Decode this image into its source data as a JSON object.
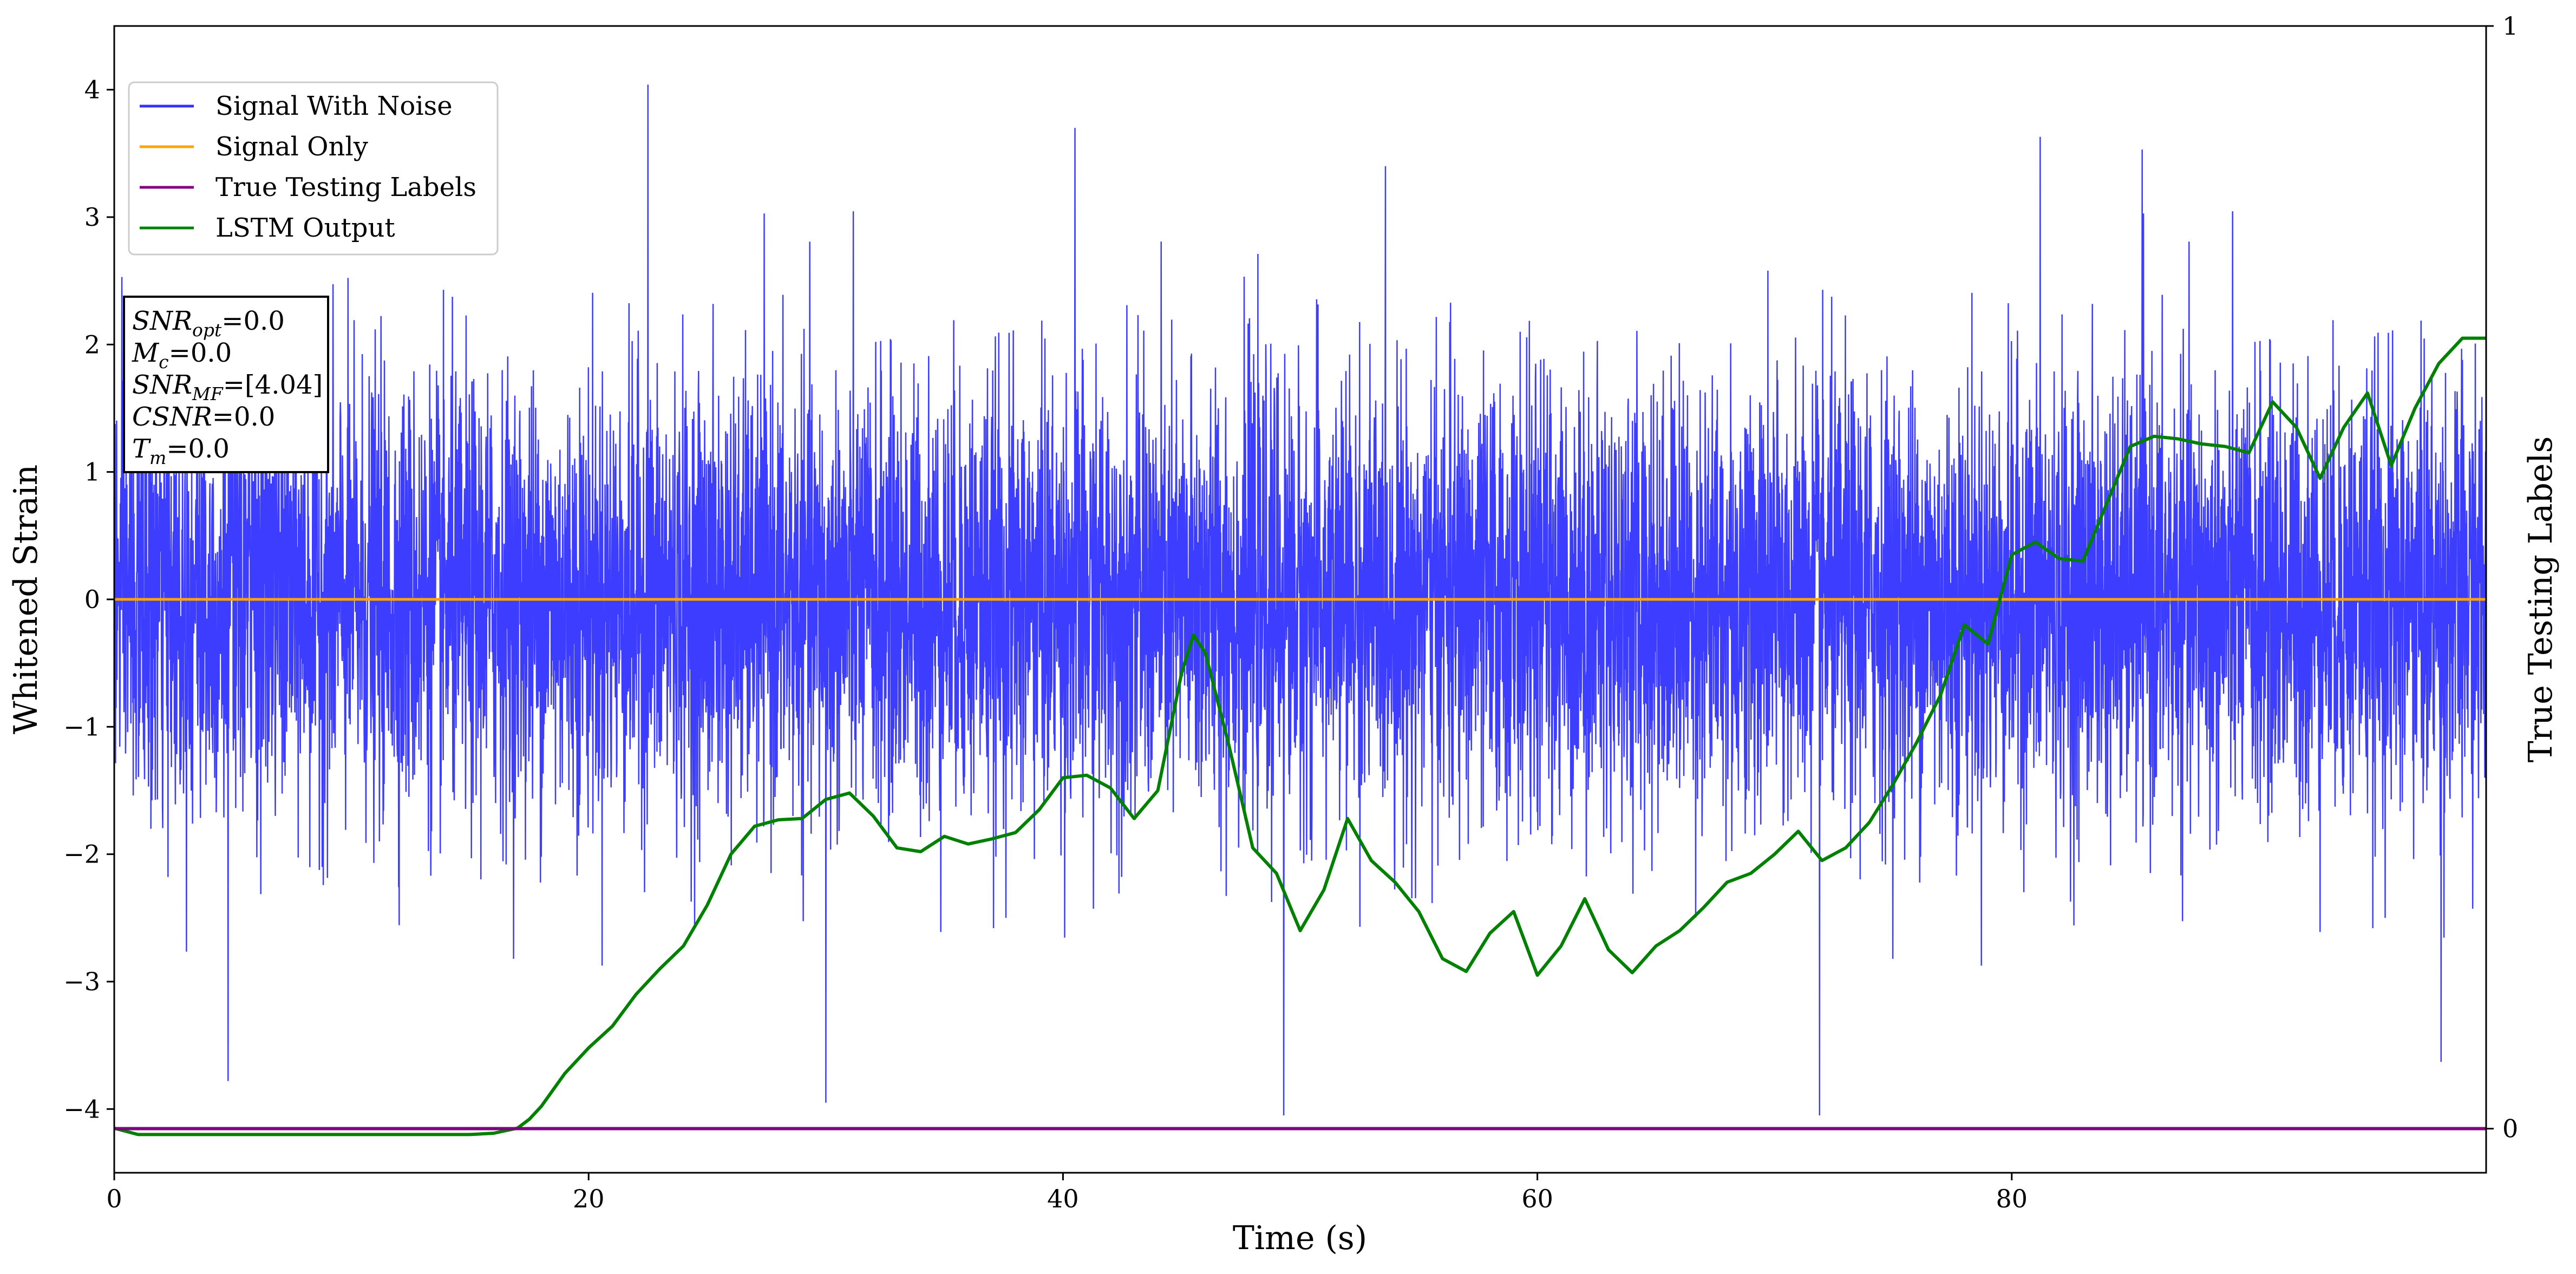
{
  "chart_data": {
    "type": "line",
    "x_label": "Time (s)",
    "y_label": "Whitened Strain",
    "y2_label": "True Testing Labels",
    "xlim": [
      0,
      100
    ],
    "ylim": [
      -4.5,
      4.5
    ],
    "y2lim": [
      -0.04,
      1.0
    ],
    "x_ticks": [
      0,
      20,
      40,
      60,
      80
    ],
    "y_ticks": [
      -4,
      -3,
      -2,
      -1,
      0,
      1,
      2,
      3,
      4
    ],
    "y2_ticks": [
      0,
      1
    ],
    "grid": false,
    "legend_position": "upper-left",
    "series": [
      {
        "name": "Signal With Noise",
        "color": "#3333ff",
        "noise_rms_approx": 0.85,
        "notable_peaks": [
          {
            "x": 22.5,
            "y": 4.04
          },
          {
            "x": 40.5,
            "y": 3.7
          },
          {
            "x": 81.2,
            "y": 3.63
          },
          {
            "x": 85.5,
            "y": 3.53
          },
          {
            "x": 49.3,
            "y": -4.05
          },
          {
            "x": 71.9,
            "y": -4.05
          },
          {
            "x": 30.0,
            "y": -3.95
          },
          {
            "x": 4.8,
            "y": -3.78
          },
          {
            "x": 98.1,
            "y": -3.63
          }
        ]
      },
      {
        "name": "Signal Only",
        "color": "#ffa500",
        "x": [
          0,
          100
        ],
        "y": [
          0,
          0
        ]
      },
      {
        "name": "True Testing Labels",
        "color": "#800080",
        "axis": "right",
        "x": [
          0,
          100
        ],
        "y": [
          0,
          0
        ]
      },
      {
        "name": "LSTM Output",
        "color": "#008000",
        "axis": "left",
        "x": [
          0,
          1,
          5,
          10,
          15,
          16,
          17,
          17.5,
          18,
          19,
          20,
          21,
          22,
          23,
          24,
          25,
          26,
          27,
          28,
          29,
          30,
          31,
          32,
          33,
          34,
          35,
          36,
          37,
          38,
          39,
          40,
          41,
          42,
          43,
          44,
          45,
          45.5,
          46,
          47,
          48,
          49,
          50,
          51,
          52,
          53,
          54,
          55,
          56,
          57,
          58,
          59,
          60,
          61,
          62,
          63,
          64,
          65,
          66,
          67,
          68,
          69,
          70,
          71,
          72,
          73,
          74,
          75,
          76,
          77,
          78,
          79,
          80,
          81,
          82,
          83,
          84,
          85,
          86,
          87,
          88,
          89,
          90,
          91,
          92,
          93,
          94,
          95,
          96,
          97,
          98,
          99,
          100
        ],
        "y": [
          -4.15,
          -4.2,
          -4.2,
          -4.2,
          -4.2,
          -4.19,
          -4.15,
          -4.08,
          -3.98,
          -3.72,
          -3.52,
          -3.35,
          -3.1,
          -2.9,
          -2.72,
          -2.4,
          -2.0,
          -1.78,
          -1.73,
          -1.72,
          -1.57,
          -1.52,
          -1.7,
          -1.95,
          -1.98,
          -1.86,
          -1.92,
          -1.88,
          -1.83,
          -1.65,
          -1.4,
          -1.38,
          -1.48,
          -1.72,
          -1.5,
          -0.58,
          -0.28,
          -0.42,
          -1.15,
          -1.95,
          -2.15,
          -2.6,
          -2.28,
          -1.72,
          -2.05,
          -2.22,
          -2.45,
          -2.82,
          -2.92,
          -2.62,
          -2.45,
          -2.95,
          -2.72,
          -2.35,
          -2.75,
          -2.93,
          -2.72,
          -2.6,
          -2.42,
          -2.22,
          -2.15,
          -2.0,
          -1.82,
          -2.05,
          -1.95,
          -1.75,
          -1.45,
          -1.12,
          -0.75,
          -0.2,
          -0.35,
          0.35,
          0.45,
          0.32,
          0.3,
          0.75,
          1.2,
          1.28,
          1.26,
          1.22,
          1.2,
          1.15,
          1.55,
          1.35,
          0.95,
          1.35,
          1.62,
          1.05,
          1.5,
          1.85,
          2.05,
          2.05
        ]
      }
    ],
    "info_box": {
      "line1_main": "SNR",
      "line1_sub": "opt",
      "line1_val": "=0.0",
      "line2_main": "M",
      "line2_sub": "c",
      "line2_val": "=0.0",
      "line3_main": "SNR",
      "line3_sub": "MF",
      "line3_val": "=[4.04]",
      "line4_main": "CSNR",
      "line4_val": "=0.0",
      "line5_main": "T",
      "line5_sub": "m",
      "line5_val": "=0.0"
    }
  }
}
